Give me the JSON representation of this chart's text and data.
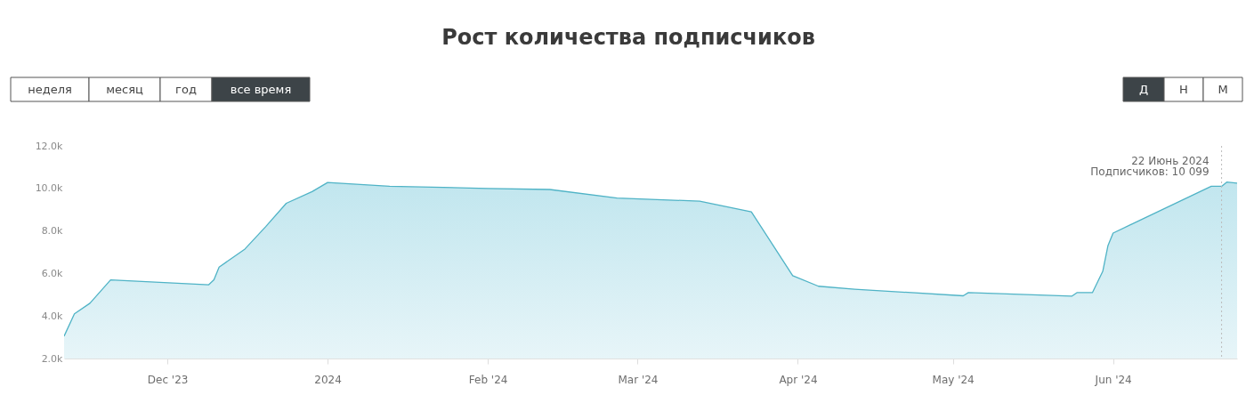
{
  "chart_data": {
    "type": "area",
    "title": "Рост количества подписчиков",
    "x": [
      "2023-11-11",
      "2023-11-13",
      "2023-11-16",
      "2023-11-20",
      "2023-12-09",
      "2023-12-10",
      "2023-12-11",
      "2023-12-16",
      "2023-12-20",
      "2023-12-24",
      "2023-12-29",
      "2024-01-01",
      "2024-01-13",
      "2024-02-01",
      "2024-02-13",
      "2024-02-26",
      "2024-03-13",
      "2024-03-23",
      "2024-03-31",
      "2024-04-05",
      "2024-04-12",
      "2024-05-03",
      "2024-05-04",
      "2024-05-24",
      "2024-05-25",
      "2024-05-28",
      "2024-05-30",
      "2024-05-31",
      "2024-06-01",
      "2024-06-20",
      "2024-06-22",
      "2024-06-23",
      "2024-06-25"
    ],
    "series": [
      {
        "color": "#4fb3c6",
        "values": [
          3050,
          4100,
          4600,
          5700,
          5470,
          5700,
          6300,
          7150,
          8200,
          9300,
          9850,
          10280,
          10100,
          10000,
          9950,
          9550,
          9400,
          8900,
          5900,
          5400,
          5260,
          4950,
          5100,
          4930,
          5100,
          5100,
          6100,
          7300,
          7900,
          10100,
          10099,
          10300,
          10250
        ]
      }
    ],
    "xlim": [
      "2023-11-11",
      "2024-06-25"
    ],
    "xticks": [
      {
        "value": "2023-12-01",
        "label": "Dec '23"
      },
      {
        "value": "2024-01-01",
        "label": "2024"
      },
      {
        "value": "2024-02-01",
        "label": "Feb '24"
      },
      {
        "value": "2024-03-01",
        "label": "Mar '24"
      },
      {
        "value": "2024-04-01",
        "label": "Apr '24"
      },
      {
        "value": "2024-05-01",
        "label": "May '24"
      },
      {
        "value": "2024-06-01",
        "label": "Jun '24"
      }
    ],
    "ylim": [
      2000,
      12000
    ],
    "yticks": [
      {
        "value": 2000,
        "label": "2.0k"
      },
      {
        "value": 4000,
        "label": "4.0k"
      },
      {
        "value": 6000,
        "label": "6.0k"
      },
      {
        "value": 8000,
        "label": "8.0k"
      },
      {
        "value": 10000,
        "label": "10.0k"
      },
      {
        "value": 12000,
        "label": "12.0k"
      }
    ],
    "grid": false,
    "ref_lines": [
      {
        "axis": "x",
        "value": "2024-06-22",
        "line_style": "dotted",
        "color": "#bbbbbb"
      }
    ],
    "annotations": [
      "неделя",
      "месяц",
      "год",
      "все время",
      "Д",
      "Н",
      "М",
      {
        "text": "22 Июнь 2024",
        "x": "2024-06-22",
        "y": 11300
      },
      {
        "text": "Подписчиков: 10 099",
        "x": "2024-06-22",
        "y": 10800
      }
    ]
  }
}
